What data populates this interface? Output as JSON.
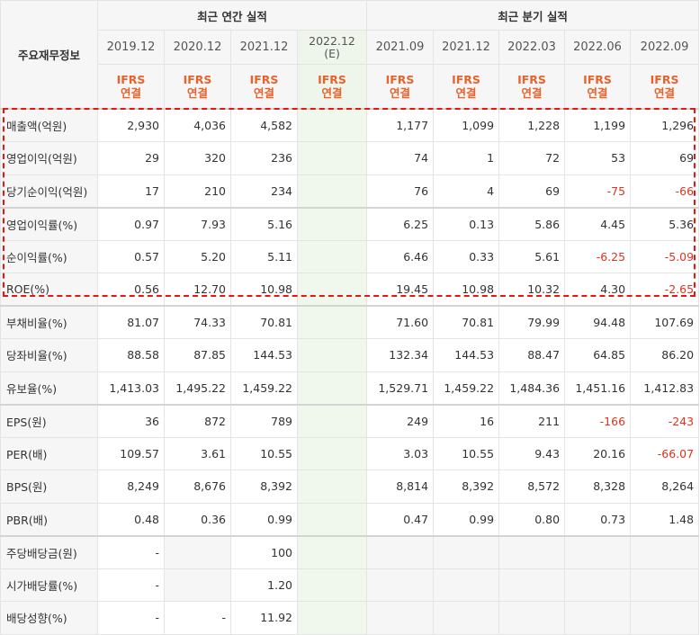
{
  "header": {
    "corner_label": "주요재무정보",
    "annual_group": "최근 연간 실적",
    "quarterly_group": "최근 분기 실적",
    "periods": [
      "2019.12",
      "2020.12",
      "2021.12",
      "2022.12",
      "2021.09",
      "2021.12",
      "2022.03",
      "2022.06",
      "2022.09"
    ],
    "estimate_mark": "(E)",
    "basis_line1": "IFRS",
    "basis_line2": "연결"
  },
  "rows": [
    {
      "label": "매출액(억원)",
      "values": [
        "2,930",
        "4,036",
        "4,582",
        "",
        "1,177",
        "1,099",
        "1,228",
        "1,199",
        "1,296"
      ]
    },
    {
      "label": "영업이익(억원)",
      "values": [
        "29",
        "320",
        "236",
        "",
        "74",
        "1",
        "72",
        "53",
        "69"
      ]
    },
    {
      "label": "당기순이익(억원)",
      "values": [
        "17",
        "210",
        "234",
        "",
        "76",
        "4",
        "69",
        "-75",
        "-66"
      ]
    },
    {
      "label": "영업이익률(%)",
      "values": [
        "0.97",
        "7.93",
        "5.16",
        "",
        "6.25",
        "0.13",
        "5.86",
        "4.45",
        "5.36"
      ]
    },
    {
      "label": "순이익률(%)",
      "values": [
        "0.57",
        "5.20",
        "5.11",
        "",
        "6.46",
        "0.33",
        "5.61",
        "-6.25",
        "-5.09"
      ]
    },
    {
      "label": "ROE(%)",
      "values": [
        "0.56",
        "12.70",
        "10.98",
        "",
        "19.45",
        "10.98",
        "10.32",
        "4.30",
        "-2.65"
      ]
    },
    {
      "label": "부채비율(%)",
      "values": [
        "81.07",
        "74.33",
        "70.81",
        "",
        "71.60",
        "70.81",
        "79.99",
        "94.48",
        "107.69"
      ]
    },
    {
      "label": "당좌비율(%)",
      "values": [
        "88.58",
        "87.85",
        "144.53",
        "",
        "132.34",
        "144.53",
        "88.47",
        "64.85",
        "86.20"
      ]
    },
    {
      "label": "유보율(%)",
      "values": [
        "1,413.03",
        "1,495.22",
        "1,459.22",
        "",
        "1,529.71",
        "1,459.22",
        "1,484.36",
        "1,451.16",
        "1,412.83"
      ]
    },
    {
      "label": "EPS(원)",
      "values": [
        "36",
        "872",
        "789",
        "",
        "249",
        "16",
        "211",
        "-166",
        "-243"
      ]
    },
    {
      "label": "PER(배)",
      "values": [
        "109.57",
        "3.61",
        "10.55",
        "",
        "3.03",
        "10.55",
        "9.43",
        "20.16",
        "-66.07"
      ]
    },
    {
      "label": "BPS(원)",
      "values": [
        "8,249",
        "8,676",
        "8,392",
        "",
        "8,814",
        "8,392",
        "8,572",
        "8,328",
        "8,264"
      ]
    },
    {
      "label": "PBR(배)",
      "values": [
        "0.48",
        "0.36",
        "0.99",
        "",
        "0.47",
        "0.99",
        "0.80",
        "0.73",
        "1.48"
      ]
    },
    {
      "label": "주당배당금(원)",
      "values": [
        "-",
        "",
        "100",
        "",
        "",
        "",
        "",
        "",
        ""
      ]
    },
    {
      "label": "시가배당률(%)",
      "values": [
        "-",
        "",
        "1.20",
        "",
        "",
        "",
        "",
        "",
        ""
      ]
    },
    {
      "label": "배당성향(%)",
      "values": [
        "-",
        "-",
        "11.92",
        "",
        "",
        "",
        "",
        "",
        ""
      ]
    }
  ],
  "colors": {
    "negative": "#e0321f",
    "ifrs_label": "#e8622c",
    "highlight_border": "#e8160e",
    "estimate_column": "#f0f8ee"
  }
}
